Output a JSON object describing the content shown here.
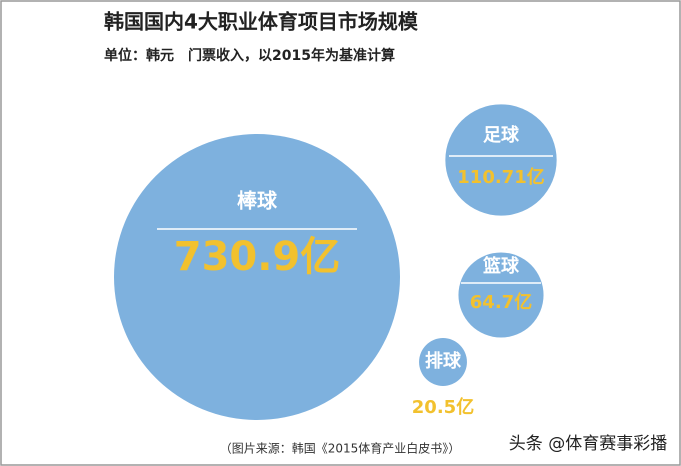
{
  "chart_data": {
    "type": "bubble",
    "title": "韩国国内4大职业体育项目市场规模",
    "subtitle": "单位：韩元　门票收入，以2015年为基准计算",
    "categories": [
      "棒球",
      "足球",
      "篮球",
      "排球"
    ],
    "values": [
      730.9,
      110.71,
      64.7,
      20.5
    ],
    "value_labels": [
      "730.9亿",
      "110.71亿",
      "64.7亿",
      "20.5亿"
    ],
    "color": "#7eb1de",
    "source": "（图片来源：韩国《2015体育产业白皮书》）",
    "watermark": "头条 @体育赛事彩播"
  }
}
